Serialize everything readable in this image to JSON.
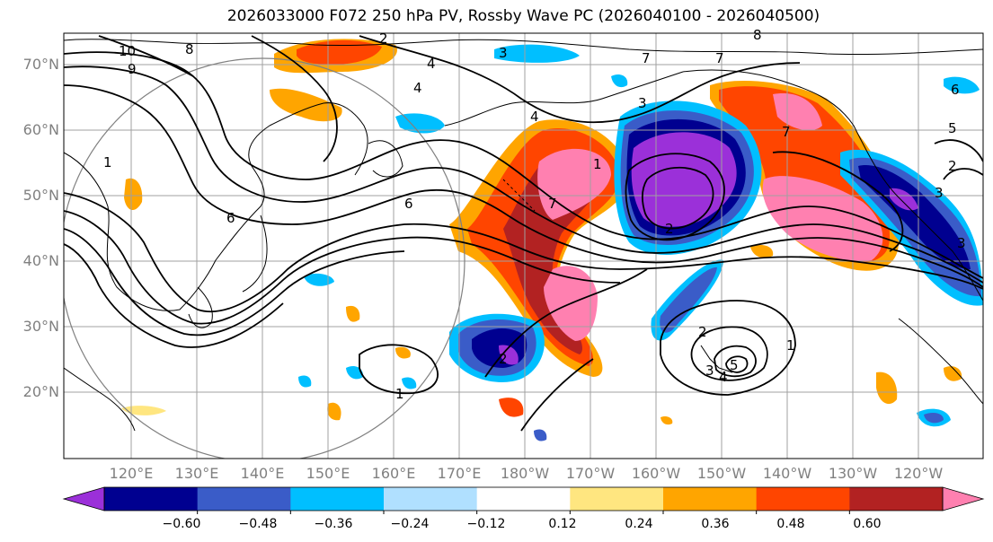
{
  "title": "2026033000 F072 250 hPa PV, Rossby Wave PC (2026040100 - 2026040500)",
  "lat_labels": [
    "70°N",
    "60°N",
    "50°N",
    "40°N",
    "30°N",
    "20°N"
  ],
  "lon_labels": [
    "120°E",
    "130°E",
    "140°E",
    "150°E",
    "160°E",
    "170°E",
    "180°W",
    "170°W",
    "160°W",
    "150°W",
    "140°W",
    "130°W",
    "120°W"
  ],
  "colorbar": {
    "colors": [
      "#9b30d9",
      "#000090",
      "#3a5cc8",
      "#00bfff",
      "#b0e0ff",
      "#ffffff",
      "#ffe680",
      "#ffa500",
      "#ff4500",
      "#b22222",
      "#ff80b0"
    ],
    "tick_labels": [
      "−0.60",
      "−0.48",
      "−0.36",
      "−0.24",
      "−0.12",
      "0.12",
      "0.24",
      "0.36",
      "0.48",
      "0.60"
    ],
    "extend": "both"
  },
  "contour_labels": [
    "10",
    "9",
    "8",
    "2",
    "3",
    "4",
    "7",
    "7",
    "8",
    "6",
    "4",
    "3",
    "4",
    "7",
    "2",
    "1",
    "6",
    "6",
    "7",
    "5",
    "2",
    "3",
    "1",
    "2",
    "3",
    "4",
    "5",
    "1",
    "1",
    "3",
    "2"
  ]
}
